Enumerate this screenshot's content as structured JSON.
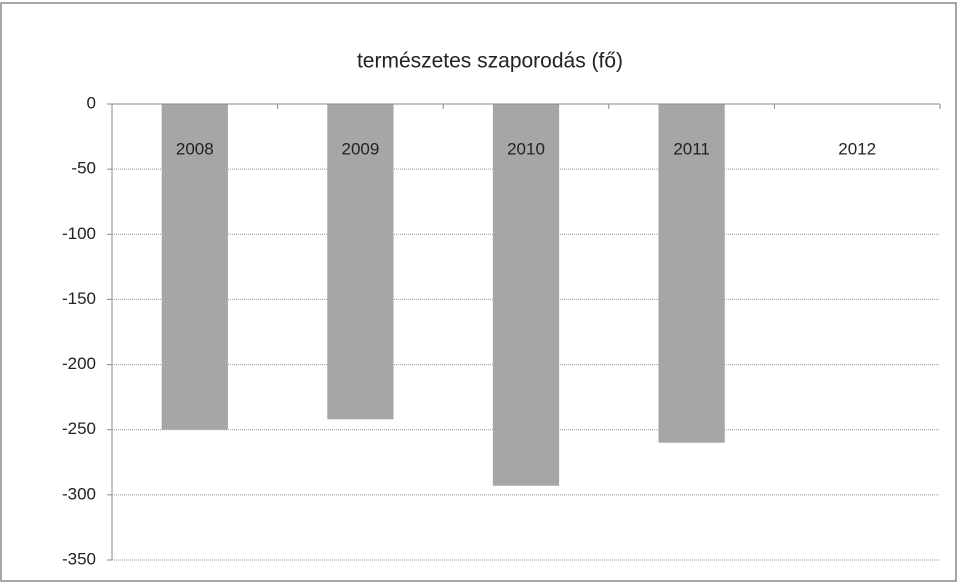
{
  "chart_data": {
    "type": "bar",
    "title": "természetes szaporodás (fő)",
    "categories": [
      "2008",
      "2009",
      "2010",
      "2011",
      "2012"
    ],
    "values": [
      -250,
      -242,
      -293,
      -260,
      null
    ],
    "color": "#a6a6a6",
    "ylim": [
      -350,
      0
    ],
    "yticks": [
      0,
      -50,
      -100,
      -150,
      -200,
      -250,
      -300,
      -350
    ],
    "grid": true
  }
}
